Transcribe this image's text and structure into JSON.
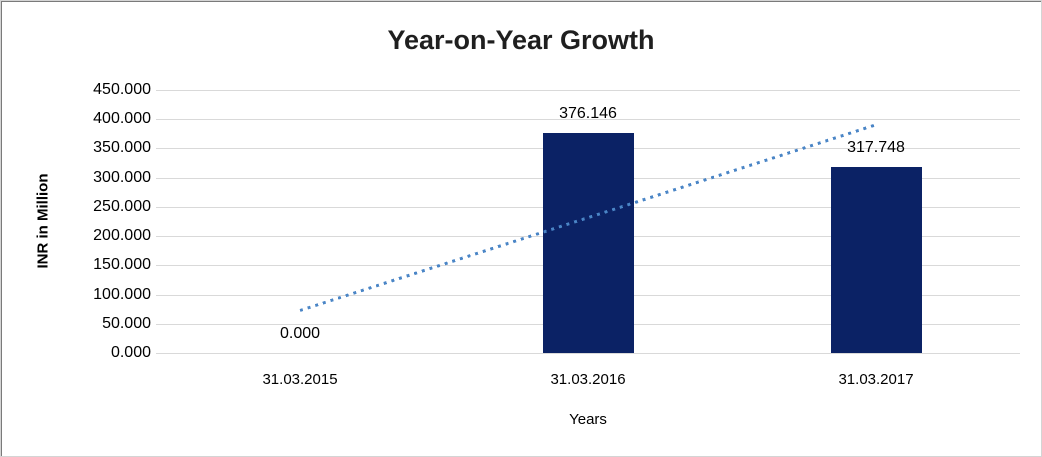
{
  "chart_data": {
    "type": "bar",
    "title": "Year-on-Year Growth",
    "xlabel": "Years",
    "ylabel": "INR in Million",
    "categories": [
      "31.03.2015",
      "31.03.2016",
      "31.03.2017"
    ],
    "values": [
      0.0,
      376.146,
      317.748
    ],
    "data_labels": [
      "0.000",
      "376.146",
      "317.748"
    ],
    "ylim": [
      0,
      450
    ],
    "ytick_labels": [
      "0.000",
      "50.000",
      "100.000",
      "150.000",
      "200.000",
      "250.000",
      "300.000",
      "350.000",
      "400.000",
      "450.000"
    ],
    "grid": true,
    "legend": "none",
    "bar_color": "#0b2265",
    "gridline_color": "#d9d9d9",
    "trendline": {
      "type": "linear",
      "style": "dotted",
      "color": "#4a85c6"
    }
  }
}
